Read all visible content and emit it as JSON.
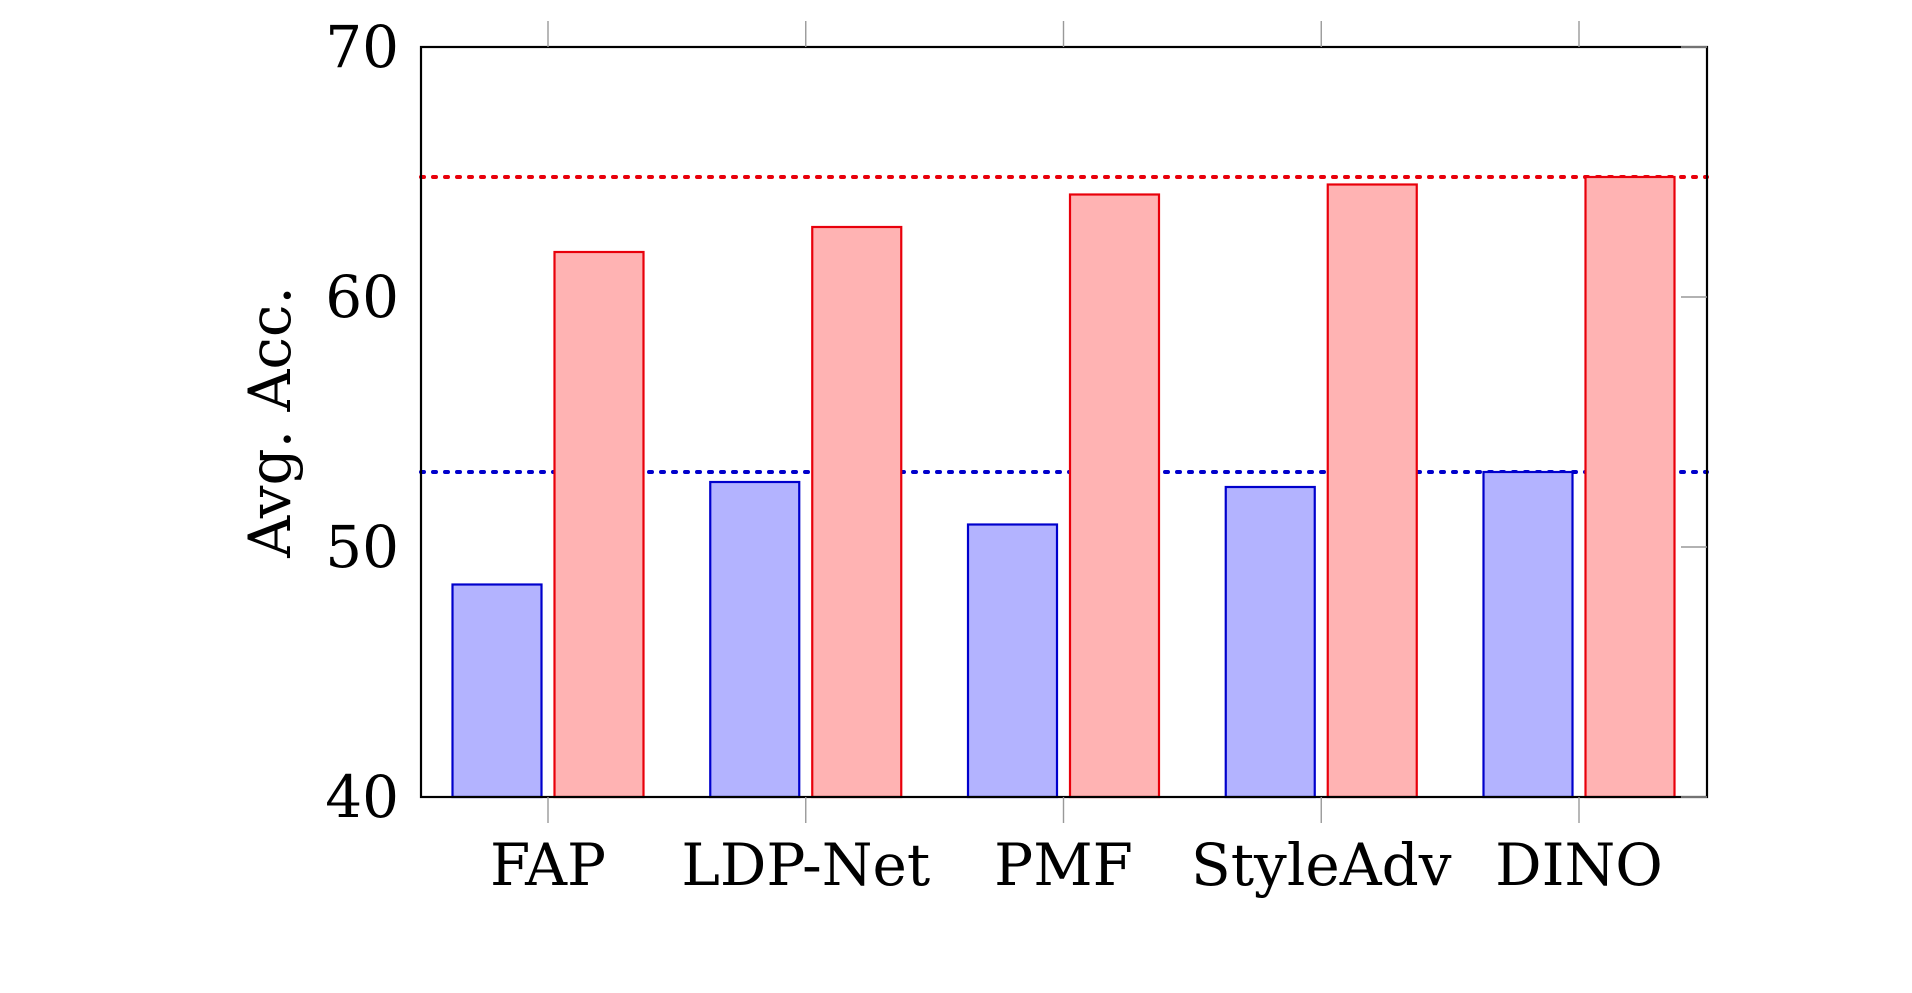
{
  "chart_data": {
    "type": "bar",
    "title": "",
    "xlabel": "",
    "ylabel": "Avg. Acc.",
    "categories": [
      "FAP",
      "LDP-Net",
      "PMF",
      "StyleAdv",
      "DINO"
    ],
    "series": [
      {
        "color": "#0000cc",
        "fill": "#b3b3ff",
        "values": [
          48.5,
          52.6,
          50.9,
          52.4,
          53.0
        ]
      },
      {
        "color": "#e8000b",
        "fill": "#ffb3b3",
        "values": [
          61.8,
          62.8,
          64.1,
          64.5,
          64.8
        ]
      }
    ],
    "reference_lines": [
      {
        "value": 64.8,
        "color": "#e8000b",
        "style": "dotted"
      },
      {
        "value": 53.0,
        "color": "#0000cc",
        "style": "dotted"
      }
    ],
    "ylim": [
      40,
      70
    ],
    "yticks": [
      40,
      50,
      60,
      70
    ],
    "grid": false,
    "legend": "none"
  }
}
